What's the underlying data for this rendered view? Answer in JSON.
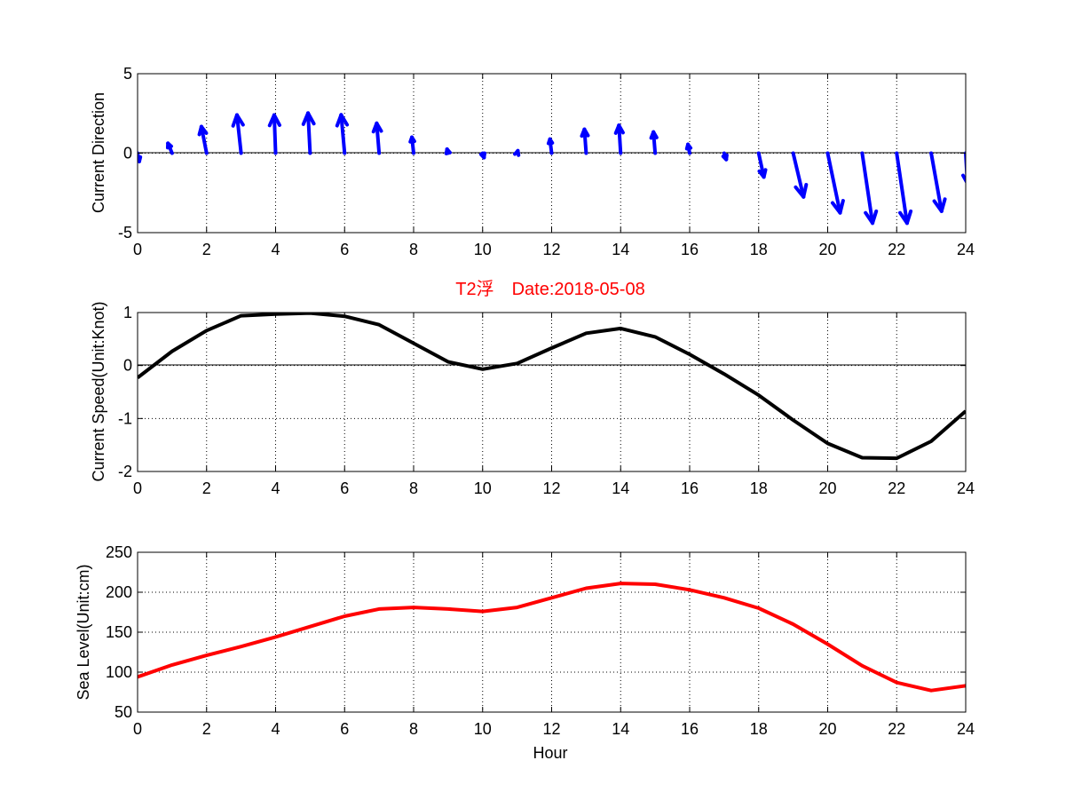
{
  "figure_title": "T2浮　Date:2018-05-08",
  "colors": {
    "direction": "#0000ff",
    "speed": "#000000",
    "sea_level": "#ff0000",
    "title": "#ff0000"
  },
  "chart_data": [
    {
      "id": "direction",
      "type": "quiver",
      "title": "",
      "xlabel": "",
      "ylabel": "Current Direction",
      "xlim": [
        0,
        24
      ],
      "ylim": [
        -5,
        5
      ],
      "xticks": [
        0,
        2,
        4,
        6,
        8,
        10,
        12,
        14,
        16,
        18,
        20,
        22,
        24
      ],
      "yticks": [
        -5,
        0,
        5
      ],
      "grid": true,
      "series": [
        {
          "name": "current vector",
          "x": [
            0,
            1,
            2,
            3,
            4,
            5,
            6,
            7,
            8,
            9,
            10,
            11,
            12,
            13,
            14,
            15,
            16,
            17,
            18,
            19,
            20,
            21,
            22,
            23,
            24
          ],
          "u": [
            0.05,
            -0.12,
            -0.15,
            -0.12,
            -0.04,
            -0.06,
            -0.1,
            -0.07,
            -0.05,
            -0.03,
            0.04,
            0.02,
            -0.05,
            -0.05,
            -0.05,
            -0.05,
            -0.05,
            0.06,
            0.15,
            0.3,
            0.36,
            0.3,
            0.3,
            0.3,
            0.05
          ],
          "v": [
            -0.52,
            0.62,
            1.67,
            2.4,
            2.4,
            2.52,
            2.41,
            1.88,
            1.0,
            0.25,
            -0.28,
            0.15,
            0.88,
            1.5,
            1.75,
            1.33,
            0.55,
            -0.4,
            -1.5,
            -2.75,
            -3.75,
            -4.4,
            -4.4,
            -3.65,
            -1.9
          ]
        }
      ]
    },
    {
      "id": "speed",
      "type": "line",
      "title": "",
      "xlabel": "",
      "ylabel": "Current Speed(Unit:Knot)",
      "xlim": [
        0,
        24
      ],
      "ylim": [
        -2,
        1
      ],
      "xticks": [
        0,
        2,
        4,
        6,
        8,
        10,
        12,
        14,
        16,
        18,
        20,
        22,
        24
      ],
      "yticks": [
        -2,
        -1,
        0,
        1
      ],
      "grid": true,
      "series": [
        {
          "name": "current speed",
          "x": [
            0,
            1,
            2,
            3,
            4,
            5,
            6,
            7,
            8,
            9,
            10,
            11,
            12,
            13,
            14,
            15,
            16,
            17,
            18,
            19,
            20,
            21,
            22,
            23,
            24
          ],
          "y": [
            -0.23,
            0.27,
            0.66,
            0.94,
            0.97,
            0.99,
            0.93,
            0.77,
            0.42,
            0.07,
            -0.07,
            0.04,
            0.33,
            0.61,
            0.7,
            0.54,
            0.21,
            -0.16,
            -0.56,
            -1.03,
            -1.47,
            -1.74,
            -1.75,
            -1.43,
            -0.86
          ]
        }
      ]
    },
    {
      "id": "sea_level",
      "type": "line",
      "title": "",
      "xlabel": "Hour",
      "ylabel": "Sea Level(Unit:cm)",
      "xlim": [
        0,
        24
      ],
      "ylim": [
        50,
        250
      ],
      "xticks": [
        0,
        2,
        4,
        6,
        8,
        10,
        12,
        14,
        16,
        18,
        20,
        22,
        24
      ],
      "yticks": [
        50,
        100,
        150,
        200,
        250
      ],
      "grid": true,
      "series": [
        {
          "name": "sea level",
          "x": [
            0,
            1,
            2,
            3,
            4,
            5,
            6,
            7,
            8,
            9,
            10,
            11,
            12,
            13,
            14,
            15,
            16,
            17,
            18,
            19,
            20,
            21,
            22,
            23,
            24
          ],
          "y": [
            94,
            109,
            121,
            132,
            144,
            157,
            170,
            179,
            181,
            179,
            176,
            181,
            193,
            205,
            211,
            210,
            203,
            193,
            180,
            160,
            135,
            108,
            87,
            77,
            83
          ]
        }
      ]
    }
  ]
}
